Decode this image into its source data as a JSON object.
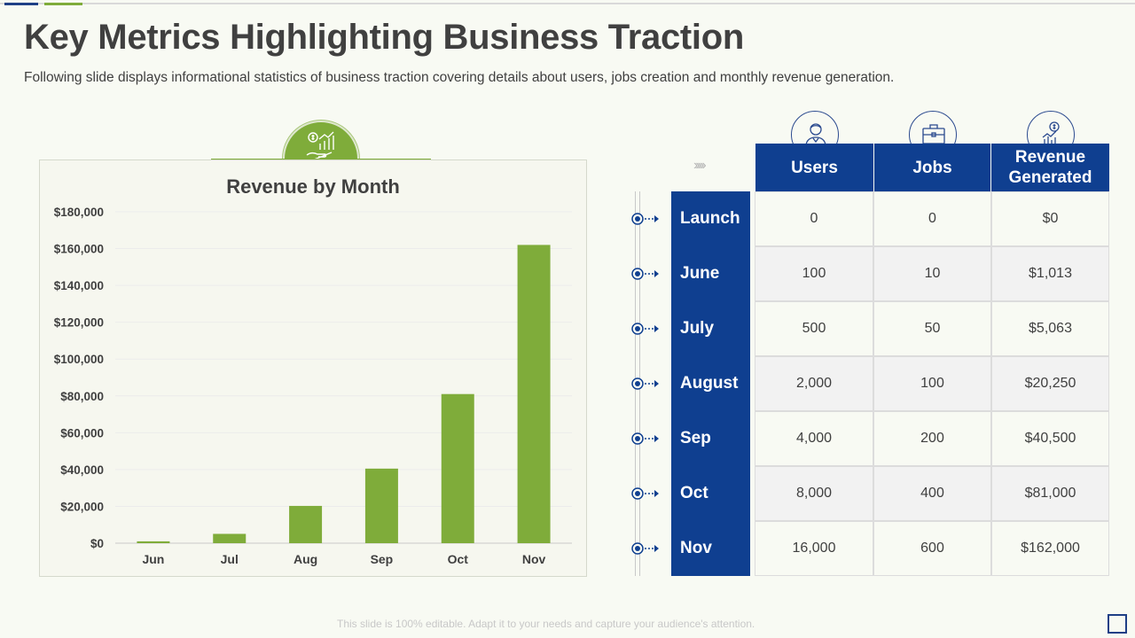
{
  "title": "Key Metrics Highlighting Business Traction",
  "subtitle": "Following slide displays informational statistics of business traction covering details about users, jobs creation and monthly  revenue  generation.",
  "footer": "This slide is 100% editable. Adapt it to your needs and capture your audience's attention.",
  "colors": {
    "bar": "#7fac3a",
    "header": "#0f3f90",
    "title": "#404040"
  },
  "chart_data": {
    "type": "bar",
    "title": "Revenue by Month",
    "categories": [
      "Jun",
      "Jul",
      "Aug",
      "Sep",
      "Oct",
      "Nov"
    ],
    "values": [
      1013,
      5063,
      20250,
      40500,
      81000,
      162000
    ],
    "ylim": [
      0,
      180000
    ],
    "yticks": [
      0,
      20000,
      40000,
      60000,
      80000,
      100000,
      120000,
      140000,
      160000,
      180000
    ],
    "ytick_labels": [
      "$0",
      "$20,000",
      "$40,000",
      "$60,000",
      "$80,000",
      "$100,000",
      "$120,000",
      "$140,000",
      "$160,000",
      "$180,000"
    ],
    "xlabel": "",
    "ylabel": ""
  },
  "table": {
    "headers": [
      "Users",
      "Jobs",
      "Revenue Generated"
    ],
    "header_icons": [
      "user-icon",
      "briefcase-icon",
      "revenue-chart-icon"
    ],
    "rows": [
      {
        "label": "Launch",
        "users": "0",
        "jobs": "0",
        "revenue": "$0"
      },
      {
        "label": "June",
        "users": "100",
        "jobs": "10",
        "revenue": "$1,013"
      },
      {
        "label": "July",
        "users": "500",
        "jobs": "50",
        "revenue": "$5,063"
      },
      {
        "label": "August",
        "users": "2,000",
        "jobs": "100",
        "revenue": "$20,250"
      },
      {
        "label": "Sep",
        "users": "4,000",
        "jobs": "200",
        "revenue": "$40,500"
      },
      {
        "label": "Oct",
        "users": "8,000",
        "jobs": "400",
        "revenue": "$81,000"
      },
      {
        "label": "Nov",
        "users": "16,000",
        "jobs": "600",
        "revenue": "$162,000"
      }
    ]
  }
}
